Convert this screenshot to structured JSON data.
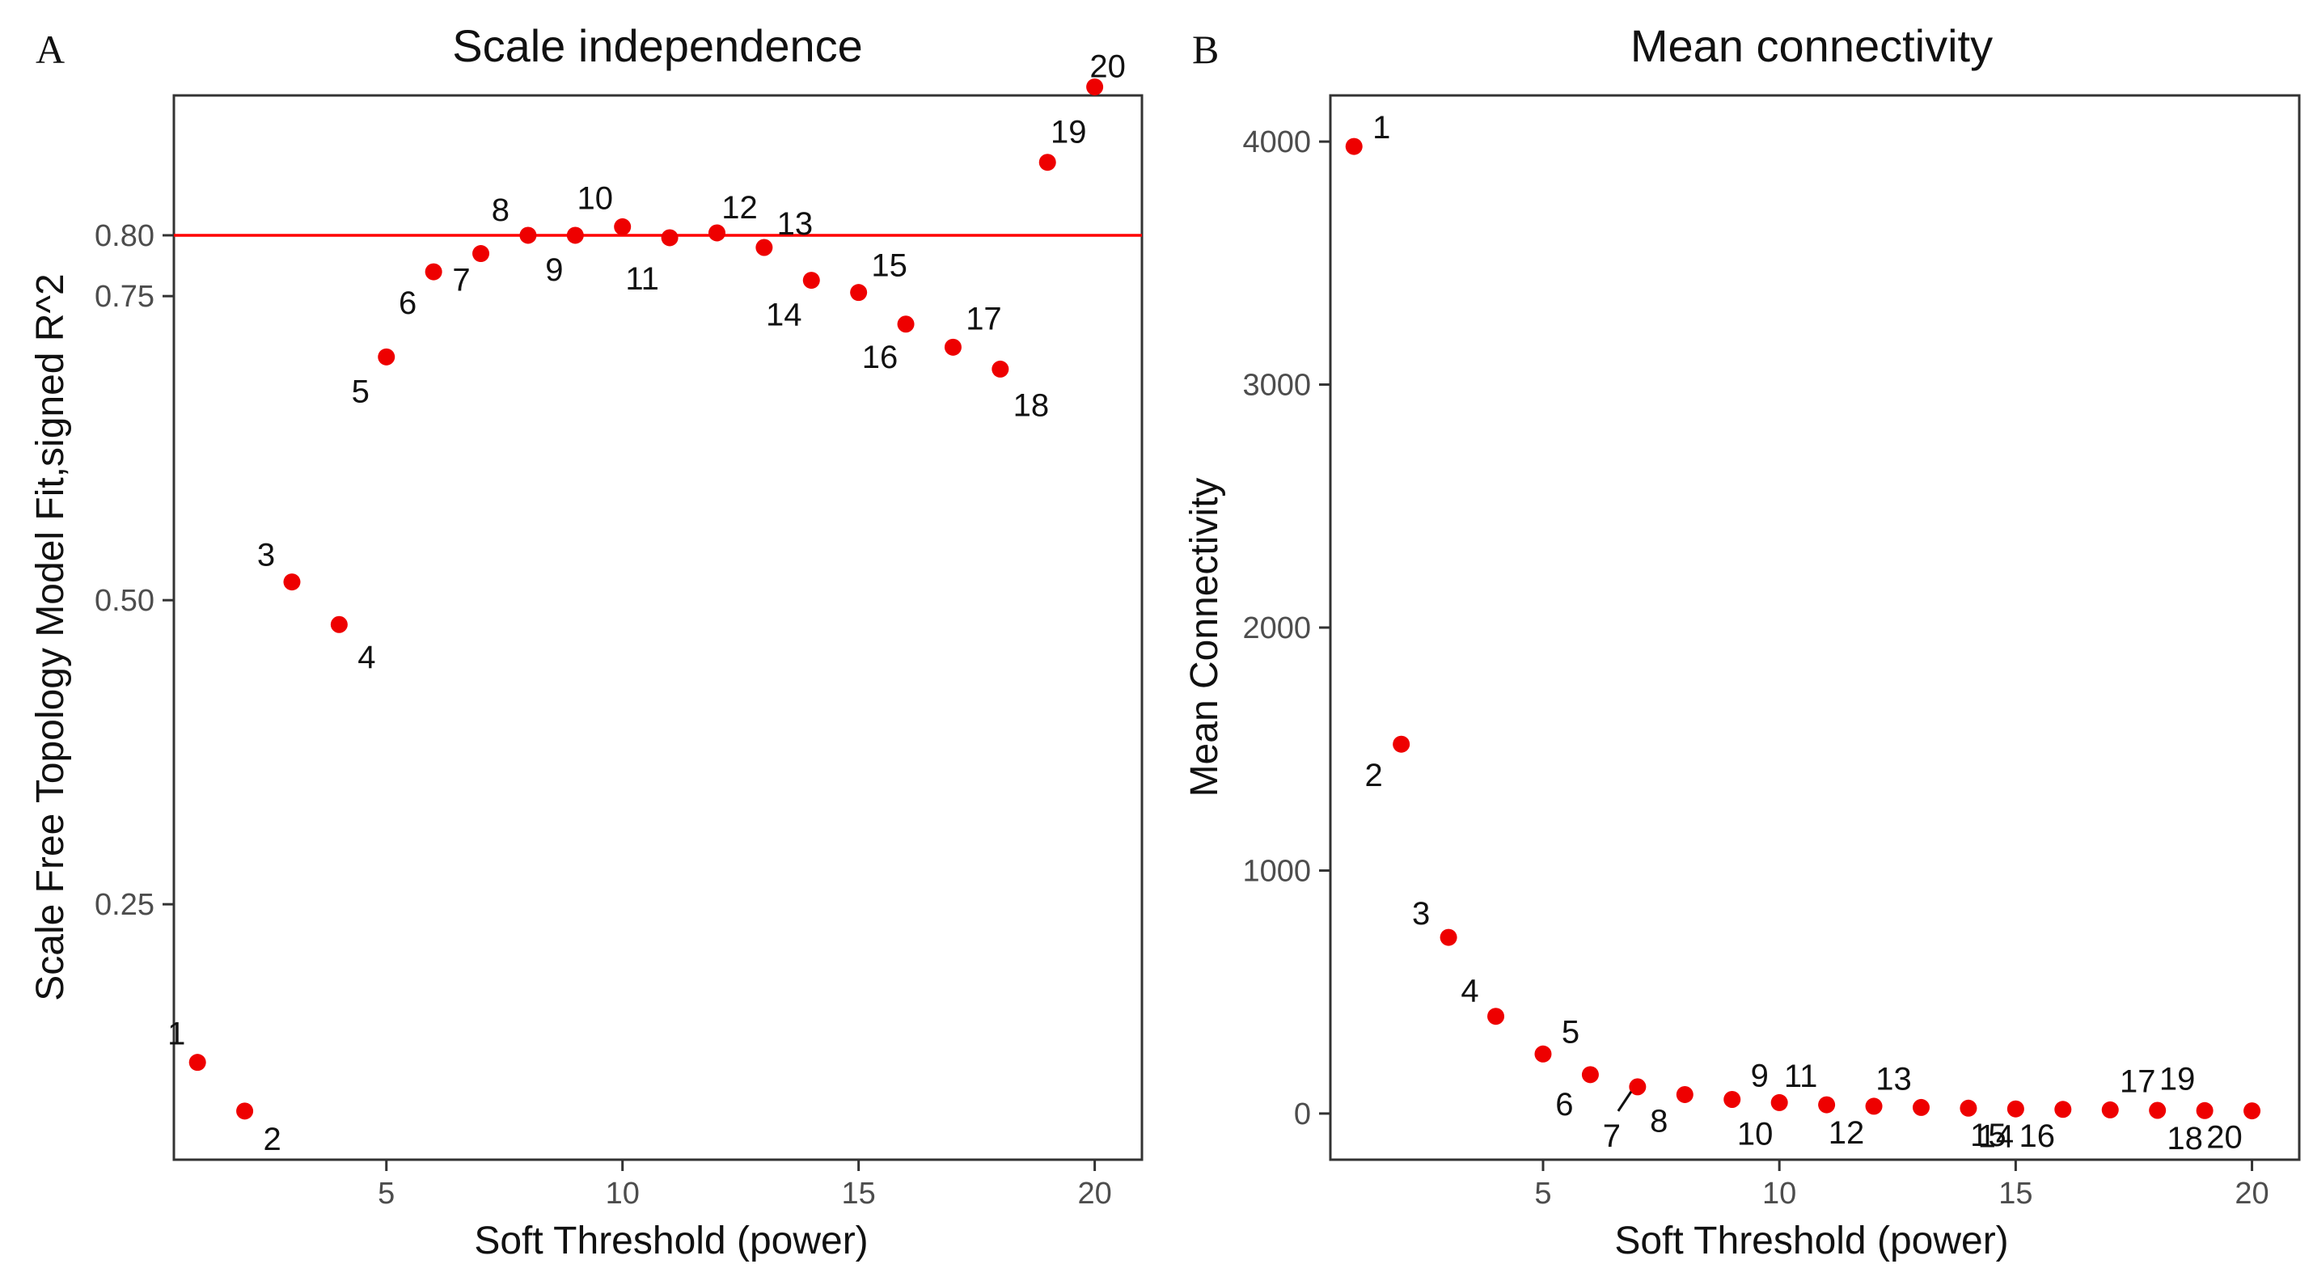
{
  "colors": {
    "point": "#ee0000",
    "hline": "#ff0000",
    "frame": "#333333",
    "tick": "#4d4d4d"
  },
  "chart_data": [
    {
      "panel": "A",
      "type": "scatter",
      "title": "Scale independence",
      "xlabel": "Soft Threshold (power)",
      "ylabel": "Scale Free Topology Model Fit,signed R^2",
      "xlim": [
        0.5,
        21
      ],
      "ylim": [
        0.04,
        0.915
      ],
      "xticks": [
        5,
        10,
        15,
        20
      ],
      "yticks": [
        0.25,
        0.5,
        0.75,
        0.8
      ],
      "ytick_labels": [
        "0.25",
        "0.50",
        "0.75",
        "0.80"
      ],
      "hline": 0.8,
      "grid": false,
      "x": [
        1,
        2,
        3,
        4,
        5,
        6,
        7,
        8,
        9,
        10,
        11,
        12,
        13,
        14,
        15,
        16,
        17,
        18,
        19,
        20
      ],
      "y": [
        0.12,
        0.08,
        0.515,
        0.48,
        0.7,
        0.77,
        0.785,
        0.8,
        0.8,
        0.807,
        0.798,
        0.802,
        0.79,
        0.763,
        0.753,
        0.727,
        0.708,
        0.69,
        0.86,
        0.922
      ],
      "labels": [
        "1",
        "2",
        "3",
        "4",
        "5",
        "6",
        "7",
        "8",
        "9",
        "10",
        "11",
        "12",
        "13",
        "14",
        "15",
        "16",
        "17",
        "18",
        "19",
        "20"
      ]
    },
    {
      "panel": "B",
      "type": "scatter",
      "title": "Mean connectivity",
      "xlabel": "Soft Threshold (power)",
      "ylabel": "Mean Connectivity",
      "xlim": [
        0.5,
        21
      ],
      "ylim": [
        -190,
        4190
      ],
      "xticks": [
        5,
        10,
        15,
        20
      ],
      "yticks": [
        0,
        1000,
        2000,
        3000,
        4000
      ],
      "ytick_labels": [
        "0",
        "1000",
        "2000",
        "3000",
        "4000"
      ],
      "grid": false,
      "x": [
        1,
        2,
        3,
        4,
        5,
        6,
        7,
        8,
        9,
        10,
        11,
        12,
        13,
        14,
        15,
        16,
        17,
        18,
        19,
        20
      ],
      "y": [
        3980,
        1520,
        725,
        400,
        245,
        160,
        110,
        78,
        58,
        45,
        36,
        30,
        25,
        22,
        19,
        17,
        15,
        13,
        12,
        11
      ],
      "labels": [
        "1",
        "2",
        "3",
        "4",
        "5",
        "6",
        "7",
        "8",
        "9",
        "10",
        "11",
        "12",
        "13",
        "14",
        "15",
        "16",
        "17",
        "18",
        "19",
        "20"
      ]
    }
  ]
}
